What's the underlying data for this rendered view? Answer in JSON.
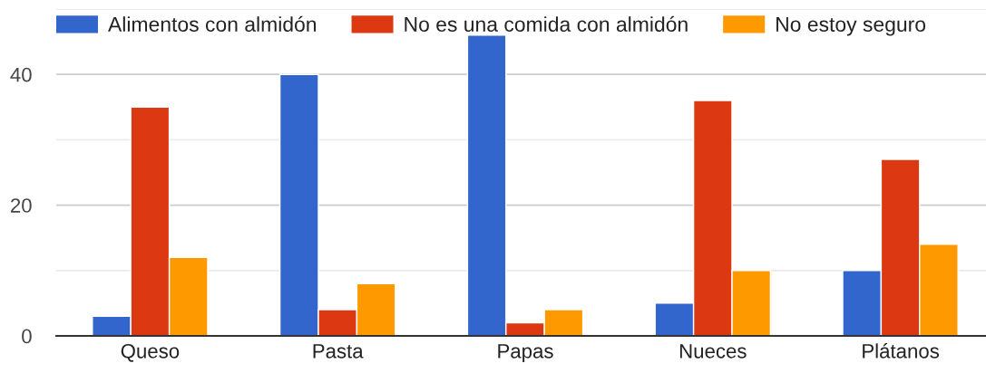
{
  "chart_data": {
    "type": "bar",
    "categories": [
      "Queso",
      "Pasta",
      "Papas",
      "Nueces",
      "Plátanos"
    ],
    "series": [
      {
        "name": "Alimentos con almidón",
        "color": "#3366cc",
        "values": [
          3,
          40,
          46,
          5,
          10
        ]
      },
      {
        "name": "No es una comida con almidón",
        "color": "#dc3912",
        "values": [
          35,
          4,
          2,
          36,
          27
        ]
      },
      {
        "name": "No estoy seguro",
        "color": "#ff9900",
        "values": [
          12,
          8,
          4,
          10,
          14
        ]
      }
    ],
    "ylim": [
      0,
      50
    ],
    "yticks": [
      0,
      {
        "value": 10,
        "label": null
      },
      20,
      {
        "value": 30,
        "label": null
      },
      40,
      {
        "value": 50,
        "label": null
      }
    ],
    "grid": "y",
    "legend": "top"
  }
}
